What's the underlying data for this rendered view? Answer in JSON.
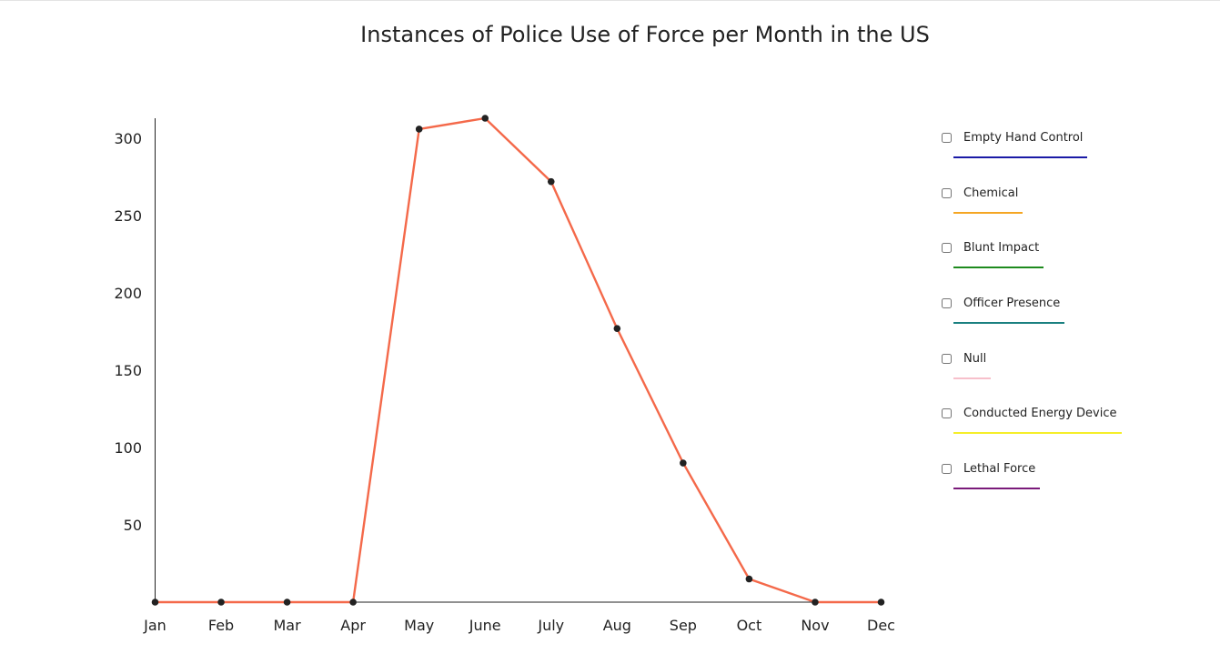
{
  "chart_data": {
    "type": "line",
    "title": "Instances of Police Use of Force per Month in the US",
    "xlabel": "",
    "ylabel": "",
    "categories": [
      "Jan",
      "Feb",
      "Mar",
      "Apr",
      "May",
      "June",
      "July",
      "Aug",
      "Sep",
      "Oct",
      "Nov",
      "Dec"
    ],
    "series": [
      {
        "color": "#f4694a",
        "values": [
          0,
          0,
          0,
          0,
          306,
          313,
          272,
          177,
          90,
          15,
          0,
          0
        ]
      }
    ],
    "yticks": [
      50,
      100,
      150,
      200,
      250,
      300
    ],
    "ylim": [
      0,
      313
    ],
    "grid": false,
    "legend": {
      "placement": "right",
      "items": [
        {
          "label": "Empty Hand Control",
          "color": "#1a1aa6"
        },
        {
          "label": "Chemical",
          "color": "#f5a623"
        },
        {
          "label": "Blunt Impact",
          "color": "#1e8a1e"
        },
        {
          "label": "Officer Presence",
          "color": "#1a8080"
        },
        {
          "label": "Null",
          "color": "#f7c0cb"
        },
        {
          "label": "Conducted Energy Device",
          "color": "#f5ee2a"
        },
        {
          "label": "Lethal Force",
          "color": "#7a1a7a"
        }
      ]
    }
  }
}
